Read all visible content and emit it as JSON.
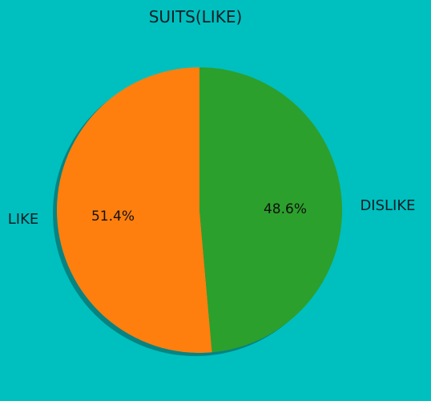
{
  "chart_data": {
    "type": "pie",
    "title": "SUITS(LIKE)",
    "slices": [
      {
        "label": "LIKE",
        "value": 51.4,
        "pct_label": "51.4%",
        "color": "#FF7F0E"
      },
      {
        "label": "DISLIKE",
        "value": 48.6,
        "pct_label": "48.6%",
        "color": "#2CA02C"
      }
    ],
    "start_angle_deg": 90,
    "direction": "counterclockwise",
    "shadow": true
  },
  "colors": {
    "background": "#00BFBF"
  }
}
